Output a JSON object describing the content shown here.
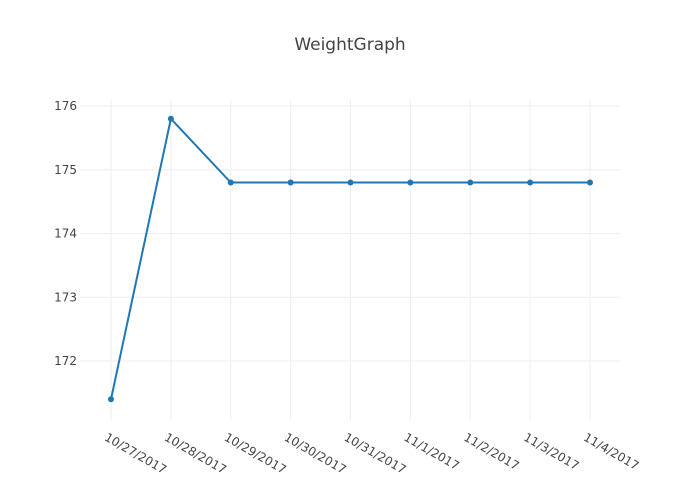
{
  "chart_data": {
    "type": "line",
    "title": "WeightGraph",
    "xlabel": "",
    "ylabel": "",
    "x": [
      "10/27/2017",
      "10/28/2017",
      "10/29/2017",
      "10/30/2017",
      "10/31/2017",
      "11/1/2017",
      "11/2/2017",
      "11/3/2017",
      "11/4/2017"
    ],
    "series": [
      {
        "values": [
          171.4,
          175.8,
          174.8,
          174.8,
          174.8,
          174.8,
          174.8,
          174.8,
          174.8
        ],
        "color": "#1f77b4"
      }
    ],
    "y_ticks": [
      "172",
      "173",
      "174",
      "175",
      "176"
    ],
    "ylim": [
      171.2,
      176.1
    ],
    "grid": true,
    "legend": false
  }
}
